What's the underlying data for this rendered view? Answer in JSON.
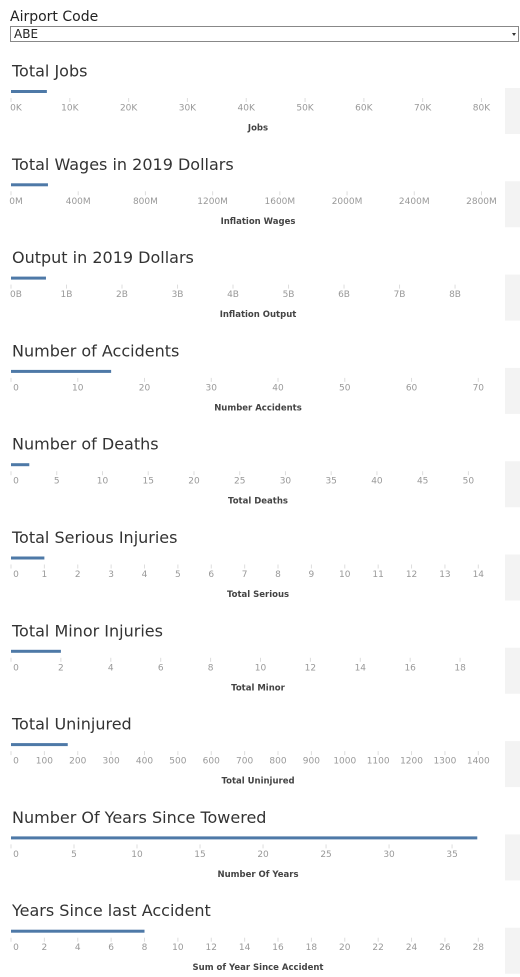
{
  "filter": {
    "label": "Airport Code",
    "value": "ABE"
  },
  "chart_data": [
    {
      "type": "bar",
      "title": "Total Jobs",
      "x_label": "Jobs",
      "color": "#4e79a7",
      "values": [
        6100
      ],
      "xlim": [
        0,
        84000
      ],
      "xticks": [
        {
          "value": 0,
          "label": "0K"
        },
        {
          "value": 10000,
          "label": "10K"
        },
        {
          "value": 20000,
          "label": "20K"
        },
        {
          "value": 30000,
          "label": "30K"
        },
        {
          "value": 40000,
          "label": "40K"
        },
        {
          "value": 50000,
          "label": "50K"
        },
        {
          "value": 60000,
          "label": "60K"
        },
        {
          "value": 70000,
          "label": "70K"
        },
        {
          "value": 80000,
          "label": "80K"
        }
      ]
    },
    {
      "type": "bar",
      "title": "Total Wages in 2019 Dollars",
      "x_label": "Inflation Wages",
      "color": "#4e79a7",
      "values": [
        220000000
      ],
      "xlim": [
        0,
        2940000000
      ],
      "xticks": [
        {
          "value": 0,
          "label": "0M"
        },
        {
          "value": 400000000,
          "label": "400M"
        },
        {
          "value": 800000000,
          "label": "800M"
        },
        {
          "value": 1200000000,
          "label": "1200M"
        },
        {
          "value": 1600000000,
          "label": "1600M"
        },
        {
          "value": 2000000000,
          "label": "2000M"
        },
        {
          "value": 2400000000,
          "label": "2400M"
        },
        {
          "value": 2800000000,
          "label": "2800M"
        }
      ]
    },
    {
      "type": "bar",
      "title": "Output in 2019 Dollars",
      "x_label": "Inflation Output",
      "color": "#4e79a7",
      "values": [
        630000000
      ],
      "xlim": [
        0,
        8900000000
      ],
      "xticks": [
        {
          "value": 0,
          "label": "0B"
        },
        {
          "value": 1000000000,
          "label": "1B"
        },
        {
          "value": 2000000000,
          "label": "2B"
        },
        {
          "value": 3000000000,
          "label": "3B"
        },
        {
          "value": 4000000000,
          "label": "4B"
        },
        {
          "value": 5000000000,
          "label": "5B"
        },
        {
          "value": 6000000000,
          "label": "6B"
        },
        {
          "value": 7000000000,
          "label": "7B"
        },
        {
          "value": 8000000000,
          "label": "8B"
        }
      ]
    },
    {
      "type": "bar",
      "title": "Number of Accidents",
      "x_label": "Number Accidents",
      "color": "#4e79a7",
      "values": [
        15
      ],
      "xlim": [
        0,
        74
      ],
      "xticks": [
        0,
        10,
        20,
        30,
        40,
        50,
        60,
        70
      ]
    },
    {
      "type": "bar",
      "title": "Number of Deaths",
      "x_label": "Total Deaths",
      "color": "#4e79a7",
      "values": [
        2
      ],
      "xlim": [
        0,
        54
      ],
      "xticks": [
        0,
        5,
        10,
        15,
        20,
        25,
        30,
        35,
        40,
        45,
        50
      ]
    },
    {
      "type": "bar",
      "title": "Total Serious Injuries",
      "x_label": "Total Serious",
      "color": "#4e79a7",
      "values": [
        1
      ],
      "xlim": [
        0,
        14.8
      ],
      "xticks": [
        0,
        1,
        2,
        3,
        4,
        5,
        6,
        7,
        8,
        9,
        10,
        11,
        12,
        13,
        14
      ]
    },
    {
      "type": "bar",
      "title": "Total Minor Injuries",
      "x_label": "Total Minor",
      "color": "#4e79a7",
      "values": [
        2
      ],
      "xlim": [
        0,
        19.8
      ],
      "xticks": [
        0,
        2,
        4,
        6,
        8,
        10,
        12,
        14,
        16,
        18
      ]
    },
    {
      "type": "bar",
      "title": "Total Uninjured",
      "x_label": "Total Uninjured",
      "color": "#4e79a7",
      "values": [
        170
      ],
      "xlim": [
        0,
        1480
      ],
      "xticks": [
        0,
        100,
        200,
        300,
        400,
        500,
        600,
        700,
        800,
        900,
        1000,
        1100,
        1200,
        1300,
        1400
      ]
    },
    {
      "type": "bar",
      "title": "Number Of Years Since Towered",
      "x_label": "Number Of Years",
      "color": "#4e79a7",
      "values": [
        37
      ],
      "xlim": [
        0,
        39.2
      ],
      "xticks": [
        0,
        5,
        10,
        15,
        20,
        25,
        30,
        35
      ]
    },
    {
      "type": "bar",
      "title": "Years Since last Accident",
      "x_label": "Sum of Year Since Accident",
      "color": "#4e79a7",
      "values": [
        8
      ],
      "xlim": [
        0,
        29.6
      ],
      "xticks": [
        0,
        2,
        4,
        6,
        8,
        10,
        12,
        14,
        16,
        18,
        20,
        22,
        24,
        26,
        28
      ]
    }
  ]
}
